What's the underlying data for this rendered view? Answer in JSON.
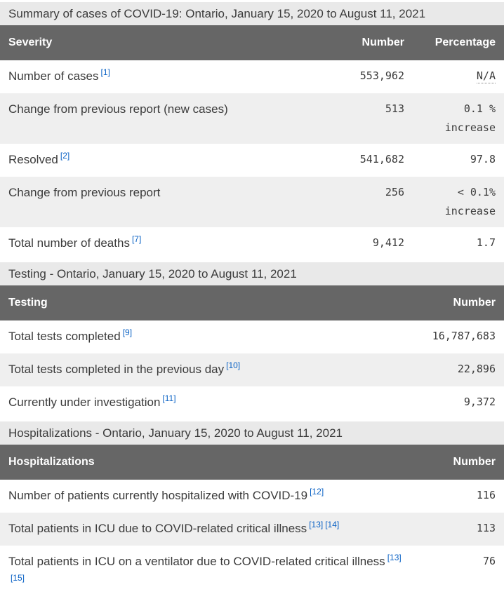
{
  "colors": {
    "table_header_bg": "#666666",
    "table_header_text": "#ffffff",
    "caption_bg": "#e9e9e9",
    "alt_row_bg": "#efefef",
    "row_bg": "#ffffff",
    "body_text": "#3b3b3b",
    "footnote_link": "#0a62c5"
  },
  "sections": [
    {
      "caption": "Summary of cases of COVID-19: Ontario, January 15, 2020 to August 11, 2021",
      "columns": [
        "Severity",
        "Number",
        "Percentage"
      ],
      "rows": [
        {
          "label": "Number of cases",
          "footnotes": [
            "[1]"
          ],
          "number": "553,962",
          "percentage": "N/A",
          "percentage_abbr": true
        },
        {
          "label": "Change from previous report (new cases)",
          "footnotes": [],
          "number": "513",
          "percentage": "0.1 % increase"
        },
        {
          "label": "Resolved",
          "footnotes": [
            "[2]"
          ],
          "number": "541,682",
          "percentage": "97.8"
        },
        {
          "label": "Change from previous report",
          "footnotes": [],
          "number": "256",
          "percentage": "< 0.1% increase"
        },
        {
          "label": "Total number of deaths",
          "footnotes": [
            "[7]"
          ],
          "number": "9,412",
          "percentage": "1.7"
        }
      ]
    },
    {
      "caption": "Testing - Ontario, January 15, 2020 to August 11, 2021",
      "columns": [
        "Testing",
        "Number"
      ],
      "rows": [
        {
          "label": "Total tests completed",
          "footnotes": [
            "[9]"
          ],
          "number": "16,787,683"
        },
        {
          "label": "Total tests completed in the previous day",
          "footnotes": [
            "[10]"
          ],
          "number": "22,896"
        },
        {
          "label": "Currently under investigation",
          "footnotes": [
            "[11]"
          ],
          "number": "9,372"
        }
      ]
    },
    {
      "caption": "Hospitalizations - Ontario, January 15, 2020 to August 11, 2021",
      "columns": [
        "Hospitalizations",
        "Number"
      ],
      "rows": [
        {
          "label": "Number of patients currently hospitalized with COVID-19",
          "footnotes": [
            "[12]"
          ],
          "number": "116"
        },
        {
          "label": "Total patients in ICU due to COVID-related critical illness",
          "footnotes": [
            "[13]",
            "[14]"
          ],
          "number": "113"
        },
        {
          "label": "Total patients in ICU on a ventilator due to COVID-related critical illness",
          "footnotes": [
            "[13]",
            "[15]"
          ],
          "number": "76"
        }
      ]
    }
  ]
}
